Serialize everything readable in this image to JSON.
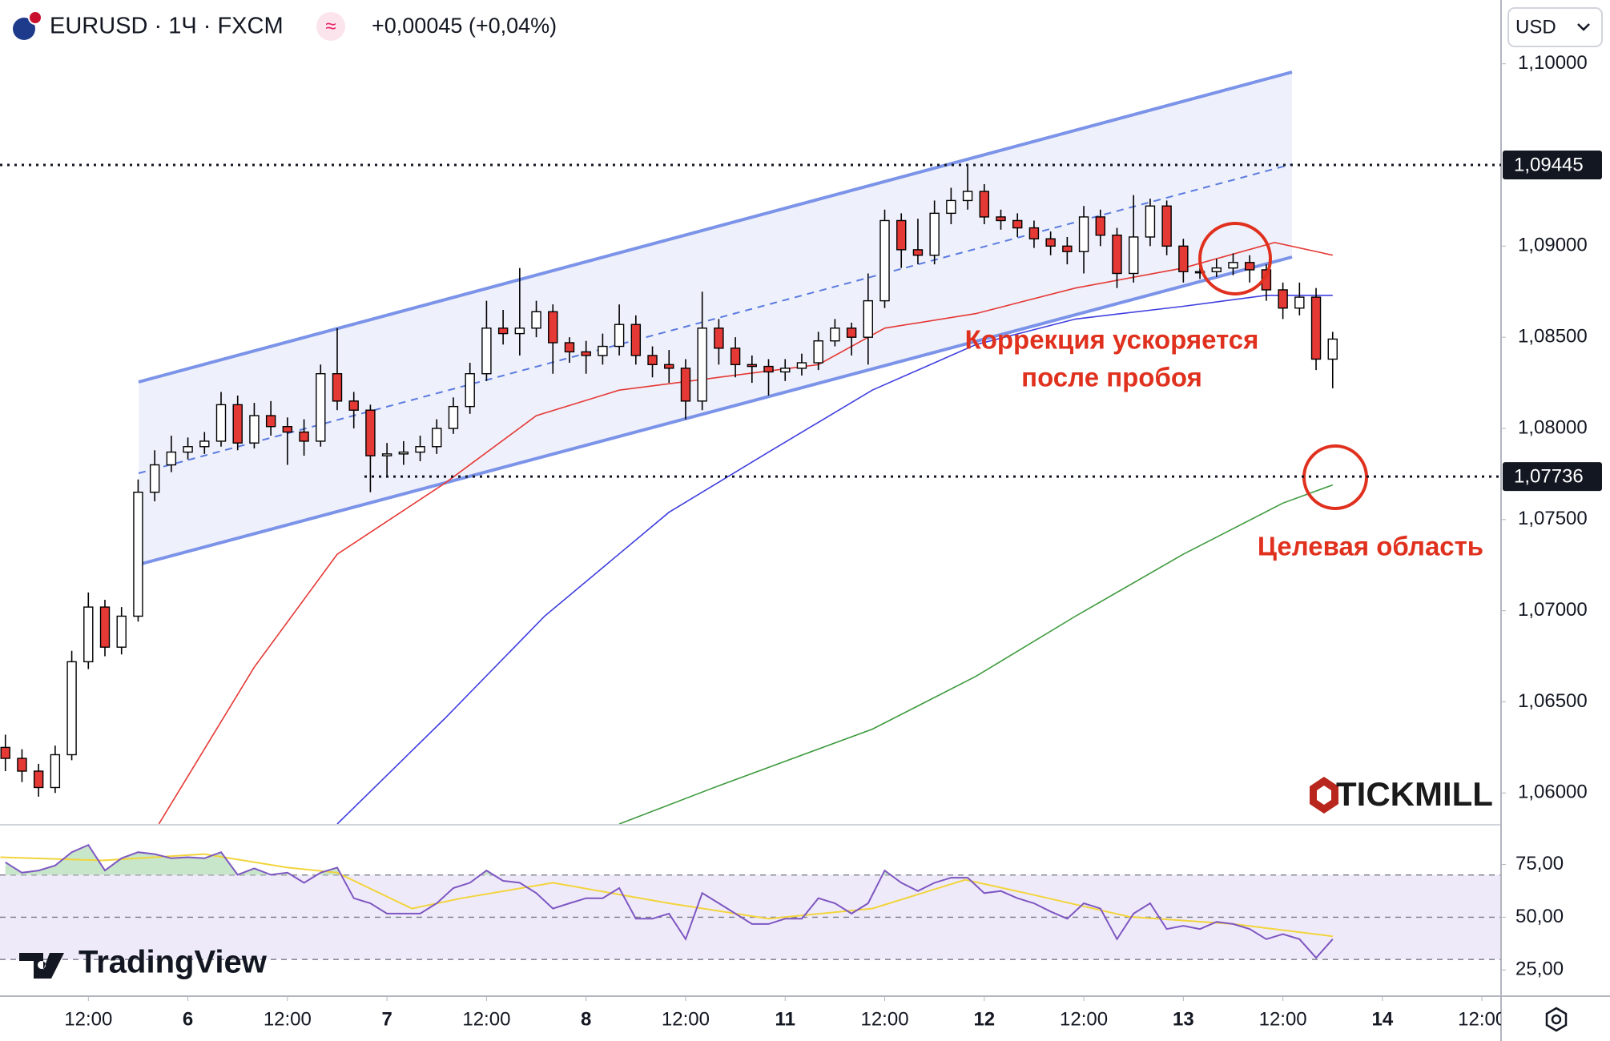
{
  "header": {
    "symbol": "EURUSD · 1Ч · FXCM",
    "change": "+0,00045 (+0,04%)",
    "currency": "USD"
  },
  "branding": {
    "broker": "TICKMILL",
    "platform": "TradingView"
  },
  "chart_data": {
    "type": "candlestick",
    "up_color": "#ffffff",
    "down_color": "#e53935",
    "edge_color": "#000000",
    "x": [
      -22,
      -20,
      -18,
      -16,
      -14,
      -12,
      -10,
      -8,
      -6,
      -4,
      -2,
      0,
      2,
      4,
      6,
      8,
      10,
      12,
      14,
      16,
      18,
      20,
      22,
      24,
      26,
      28,
      30,
      32,
      34,
      36,
      38,
      40,
      42,
      44,
      46,
      48,
      50,
      52,
      54,
      56,
      58,
      60,
      62,
      64,
      66,
      68,
      70,
      72,
      74,
      76,
      78,
      80,
      82,
      84,
      86,
      88,
      90,
      92,
      94,
      96,
      98,
      100,
      102,
      104,
      106,
      108,
      110,
      112,
      114,
      116,
      118,
      120,
      122,
      124,
      126,
      128,
      130,
      132,
      134,
      136,
      138
    ],
    "open": [
      1.0625,
      1.0619,
      1.0612,
      1.0603,
      1.0621,
      1.0672,
      1.0702,
      1.068,
      1.0697,
      1.0765,
      1.078,
      1.0787,
      1.079,
      1.0793,
      1.0813,
      1.0792,
      1.0807,
      1.0801,
      1.0798,
      1.0793,
      1.083,
      1.0815,
      1.081,
      1.0785,
      1.0786,
      1.0787,
      1.079,
      1.08,
      1.0812,
      1.083,
      1.0855,
      1.0852,
      1.0855,
      1.0864,
      1.0847,
      1.0842,
      1.084,
      1.0845,
      1.0857,
      1.084,
      1.0835,
      1.0833,
      1.0815,
      1.0855,
      1.0844,
      1.0835,
      1.0834,
      1.0831,
      1.0833,
      1.0836,
      1.0848,
      1.0855,
      1.085,
      1.087,
      1.0914,
      1.0898,
      1.0895,
      1.0918,
      1.0925,
      1.093,
      1.0916,
      1.0914,
      1.091,
      1.0904,
      1.09,
      1.0897,
      1.0916,
      1.0906,
      1.0885,
      1.0905,
      1.0922,
      1.09,
      1.0886,
      1.0886,
      1.0888,
      1.0891,
      1.0887,
      1.0876,
      1.0866,
      1.0872,
      1.0838
    ],
    "high": [
      1.0632,
      1.0624,
      1.0616,
      1.0626,
      1.0678,
      1.071,
      1.0706,
      1.0702,
      1.0772,
      1.0788,
      1.0796,
      1.0795,
      1.0798,
      1.082,
      1.0818,
      1.0814,
      1.0815,
      1.0806,
      1.0805,
      1.0835,
      1.0855,
      1.082,
      1.0813,
      1.0792,
      1.0793,
      1.0796,
      1.0805,
      1.0817,
      1.0836,
      1.087,
      1.0865,
      1.0888,
      1.087,
      1.0868,
      1.085,
      1.0848,
      1.0852,
      1.0868,
      1.0862,
      1.0845,
      1.0843,
      1.0838,
      1.0875,
      1.086,
      1.085,
      1.084,
      1.0838,
      1.0838,
      1.0841,
      1.0853,
      1.086,
      1.0858,
      1.0885,
      1.092,
      1.0918,
      1.0915,
      1.0925,
      1.0932,
      1.0944,
      1.0934,
      1.092,
      1.0918,
      1.0914,
      1.0908,
      1.0905,
      1.0922,
      1.092,
      1.091,
      1.0928,
      1.0926,
      1.0925,
      1.0904,
      1.0892,
      1.0893,
      1.0896,
      1.0895,
      1.089,
      1.088,
      1.088,
      1.0877,
      1.0853
    ],
    "low": [
      1.0612,
      1.0606,
      1.0598,
      1.06,
      1.0618,
      1.0668,
      1.0675,
      1.0676,
      1.0694,
      1.076,
      1.0776,
      1.0783,
      1.0786,
      1.079,
      1.0788,
      1.0789,
      1.0796,
      1.078,
      1.0785,
      1.079,
      1.081,
      1.08,
      1.0765,
      1.0774,
      1.078,
      1.0782,
      1.0786,
      1.0797,
      1.0808,
      1.0826,
      1.0846,
      1.084,
      1.085,
      1.083,
      1.0836,
      1.083,
      1.0835,
      1.084,
      1.0835,
      1.0828,
      1.0825,
      1.0805,
      1.081,
      1.0835,
      1.0828,
      1.0825,
      1.0818,
      1.0826,
      1.0829,
      1.0832,
      1.0845,
      1.084,
      1.0835,
      1.0866,
      1.0888,
      1.089,
      1.089,
      1.0912,
      1.092,
      1.0912,
      1.0909,
      1.0905,
      1.0899,
      1.0895,
      1.089,
      1.0885,
      1.09,
      1.0877,
      1.088,
      1.09,
      1.0895,
      1.088,
      1.0882,
      1.0883,
      1.0884,
      1.088,
      1.087,
      1.086,
      1.0862,
      1.0832,
      1.0822
    ],
    "close": [
      1.0619,
      1.0612,
      1.0603,
      1.0621,
      1.0672,
      1.0702,
      1.068,
      1.0697,
      1.0765,
      1.078,
      1.0787,
      1.079,
      1.0793,
      1.0813,
      1.0792,
      1.0807,
      1.0801,
      1.0798,
      1.0793,
      1.083,
      1.0815,
      1.081,
      1.0785,
      1.0786,
      1.0787,
      1.079,
      1.08,
      1.0812,
      1.083,
      1.0855,
      1.0852,
      1.0855,
      1.0864,
      1.0847,
      1.0842,
      1.084,
      1.0845,
      1.0857,
      1.084,
      1.0835,
      1.0833,
      1.0815,
      1.0855,
      1.0844,
      1.0835,
      1.0834,
      1.0831,
      1.0833,
      1.0836,
      1.0848,
      1.0855,
      1.085,
      1.087,
      1.0914,
      1.0898,
      1.0895,
      1.0918,
      1.0925,
      1.093,
      1.0916,
      1.0914,
      1.091,
      1.0904,
      1.09,
      1.0897,
      1.0916,
      1.0906,
      1.0885,
      1.0905,
      1.0922,
      1.09,
      1.0886,
      1.0886,
      1.0888,
      1.0891,
      1.0887,
      1.0876,
      1.0866,
      1.0872,
      1.0838,
      1.0849
    ],
    "moving_averages": [
      {
        "color": "#e53935",
        "x": [
          -3.5,
          8,
          18,
          31,
          42,
          52,
          64,
          76,
          84,
          95,
          107,
          120,
          131,
          138
        ],
        "values": [
          1.0583,
          1.0669,
          1.0731,
          1.077,
          1.0807,
          1.0821,
          1.0828,
          1.0835,
          1.0855,
          1.0863,
          1.0877,
          1.0888,
          1.0902,
          1.0895
        ]
      },
      {
        "color": "#3f3fe0",
        "x": [
          18,
          31,
          43,
          58,
          70,
          82.5,
          95,
          107,
          120,
          130,
          138
        ],
        "values": [
          1.0583,
          1.0641,
          1.0697,
          1.0754,
          1.0787,
          1.0821,
          1.0846,
          1.086,
          1.0867,
          1.0873,
          1.0873
        ]
      },
      {
        "color": "#3e9a3e",
        "x": [
          52,
          64,
          82.5,
          95,
          107,
          120,
          132,
          138
        ],
        "values": [
          1.0583,
          1.0604,
          1.0635,
          1.0664,
          1.0697,
          1.0731,
          1.0759,
          1.0769
        ]
      }
    ],
    "levels": [
      {
        "value": 1.09445,
        "label": "1,09445"
      },
      {
        "value": 1.07736,
        "label": "1,07736"
      }
    ],
    "annotations": [
      "Коррекция ускоряется",
      "после пробоя",
      "Целевая область"
    ],
    "xlim": [
      -22.65,
      158.3
    ],
    "xticks": [
      {
        "value": -12,
        "label": "12:00"
      },
      {
        "value": 0,
        "label": "6"
      },
      {
        "value": 12,
        "label": "12:00"
      },
      {
        "value": 24,
        "label": "7"
      },
      {
        "value": 36,
        "label": "12:00"
      },
      {
        "value": 48,
        "label": "8"
      },
      {
        "value": 60,
        "label": "12:00"
      },
      {
        "value": 72,
        "label": "11"
      },
      {
        "value": 84,
        "label": "12:00"
      },
      {
        "value": 96,
        "label": "12"
      },
      {
        "value": 108,
        "label": "12:00"
      },
      {
        "value": 120,
        "label": "13"
      },
      {
        "value": 132,
        "label": "12:00"
      },
      {
        "value": 144,
        "label": "14"
      },
      {
        "value": 156,
        "label": "12:00"
      }
    ],
    "ylim": [
      1.0583,
      1.1035
    ],
    "yticks": [
      {
        "value": 1.06,
        "label": "1,06000"
      },
      {
        "value": 1.065,
        "label": "1,06500"
      },
      {
        "value": 1.07,
        "label": "1,07000"
      },
      {
        "value": 1.075,
        "label": "1,07500"
      },
      {
        "value": 1.08,
        "label": "1,08000"
      },
      {
        "value": 1.085,
        "label": "1,08500"
      },
      {
        "value": 1.09,
        "label": "1,09000"
      },
      {
        "value": 1.1,
        "label": "1,10000"
      }
    ],
    "rsi": {
      "color": "#7e57c2",
      "ma_color": "#f2d43c",
      "ylim": [
        13,
        93
      ],
      "yticks": [
        {
          "value": 75,
          "label": "75,00"
        },
        {
          "value": 50,
          "label": "50,00"
        },
        {
          "value": 25,
          "label": "25,00"
        }
      ],
      "levels": [
        70,
        50,
        30
      ],
      "values": [
        76.0,
        71.1,
        72.1,
        74.5,
        80.8,
        84.2,
        72.1,
        77.9,
        80.8,
        79.9,
        77.9,
        78.4,
        77.9,
        80.8,
        70.1,
        73.1,
        70.1,
        71.1,
        66.3,
        71.1,
        73.5,
        59.0,
        56.6,
        51.7,
        51.7,
        51.7,
        56.6,
        63.8,
        66.3,
        72.1,
        67.2,
        66.3,
        61.4,
        54.1,
        56.6,
        59.0,
        59.0,
        63.8,
        49.3,
        49.3,
        51.7,
        39.6,
        61.4,
        56.6,
        51.7,
        46.8,
        46.8,
        49.3,
        49.3,
        59.0,
        56.6,
        51.7,
        56.6,
        72.1,
        66.3,
        62.4,
        66.3,
        68.7,
        68.7,
        61.4,
        62.4,
        59.0,
        56.6,
        52.7,
        49.3,
        56.6,
        54.1,
        39.6,
        51.7,
        56.6,
        44.4,
        45.9,
        44.4,
        47.8,
        46.8,
        44.4,
        39.6,
        42.0,
        39.6,
        30.8,
        39.6
      ],
      "ma_x": [
        -22.6,
        -10.3,
        2,
        12,
        18,
        27,
        33,
        44,
        58,
        70,
        82.5,
        93.7,
        101,
        113.5,
        126,
        138
      ],
      "ma_values": [
        78.4,
        76.9,
        79.9,
        73.5,
        71.1,
        54.1,
        59.0,
        66.3,
        56.6,
        49.3,
        54.1,
        67.7,
        61.4,
        50.2,
        46.8,
        41.0
      ]
    }
  }
}
